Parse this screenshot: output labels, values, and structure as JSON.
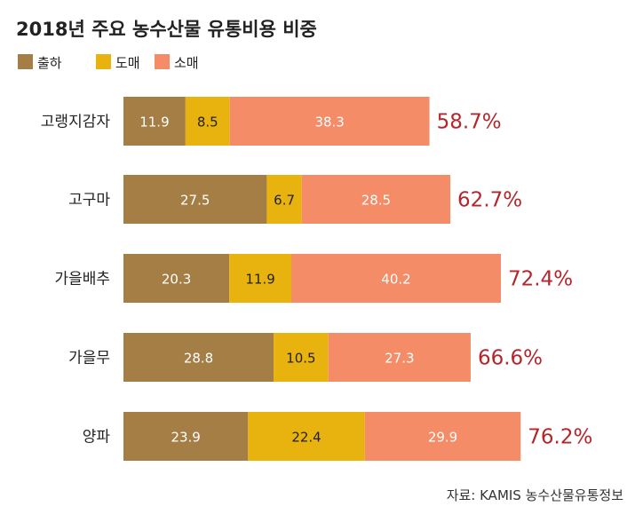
{
  "chart_data": {
    "type": "bar",
    "orientation": "horizontal",
    "stacked": true,
    "title": "2018년 주요 농수산물 유통비용 비중",
    "categories": [
      "고랭지감자",
      "고구마",
      "가을배추",
      "가을무",
      "양파"
    ],
    "series": [
      {
        "name": "출하",
        "color": "#a57e45",
        "values": [
          11.9,
          27.5,
          20.3,
          28.8,
          23.9
        ]
      },
      {
        "name": "도매",
        "color": "#e8b20f",
        "values": [
          8.5,
          6.7,
          11.9,
          10.5,
          22.4
        ]
      },
      {
        "name": "소매",
        "color": "#f48c68",
        "values": [
          38.3,
          28.5,
          40.2,
          27.3,
          29.9
        ]
      }
    ],
    "totals": [
      "58.7%",
      "62.7%",
      "72.4%",
      "66.6%",
      "76.2%"
    ],
    "legend": "top-left",
    "grid": false,
    "xlim": [
      0,
      100
    ]
  },
  "source": "자료: KAMIS 농수산물유통정보",
  "colors": {
    "total_label": "#b5262b"
  }
}
